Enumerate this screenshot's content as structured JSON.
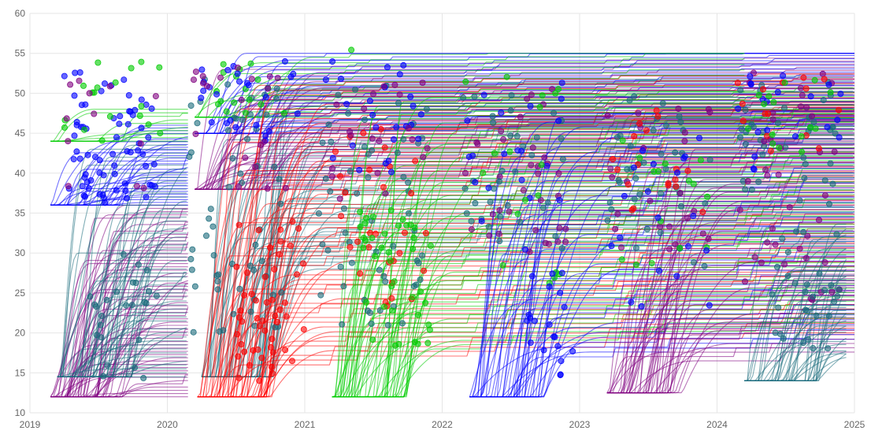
{
  "chart_data": {
    "type": "line",
    "title": "",
    "xlabel": "",
    "ylabel": "",
    "xlim": [
      2019,
      2025
    ],
    "ylim": [
      10,
      60
    ],
    "grid": true,
    "legend": "none",
    "x_ticks": [
      "2019",
      "2020",
      "2021",
      "2022",
      "2023",
      "2024",
      "2025"
    ],
    "y_ticks": [
      "10",
      "15",
      "20",
      "25",
      "30",
      "35",
      "40",
      "45",
      "50",
      "55",
      "60"
    ],
    "colors": {
      "purple": "#800080",
      "teal": "#1a6b7c",
      "red": "#ff0000",
      "green": "#00cc00",
      "blue": "#0000ff",
      "grid": "#e6e6e6",
      "ticks": "#666666"
    },
    "cohorts": [
      {
        "color": "purple",
        "start": 2019.15,
        "end": 2020.15,
        "base": 12.0,
        "plateau_min": 12.0,
        "plateau_max": 36.0,
        "count": 60
      },
      {
        "color": "blue",
        "start": 2019.15,
        "end": 2020.15,
        "base": 36.0,
        "plateau_min": 36.0,
        "plateau_max": 46.0,
        "count": 30
      },
      {
        "color": "green",
        "start": 2019.15,
        "end": 2020.15,
        "base": 44.0,
        "plateau_min": 44.0,
        "plateau_max": 48.0,
        "count": 10
      },
      {
        "color": "teal",
        "start": 2019.2,
        "end": 2020.15,
        "base": 14.5,
        "plateau_min": 14.5,
        "plateau_max": 44.0,
        "count": 60
      },
      {
        "color": "teal",
        "start": 2020.25,
        "end": 2025.0,
        "base": 14.5,
        "plateau_min": 28.0,
        "plateau_max": 51.0,
        "count": 55
      },
      {
        "color": "purple",
        "start": 2020.2,
        "end": 2025.0,
        "base": 38.0,
        "plateau_min": 38.0,
        "plateau_max": 53.0,
        "count": 40
      },
      {
        "color": "blue",
        "start": 2020.2,
        "end": 2025.0,
        "base": 45.0,
        "plateau_min": 45.0,
        "plateau_max": 55.0,
        "count": 25
      },
      {
        "color": "green",
        "start": 2020.2,
        "end": 2024.2,
        "base": 47.0,
        "plateau_min": 47.0,
        "plateau_max": 54.5,
        "count": 12
      },
      {
        "color": "red",
        "start": 2020.22,
        "end": 2025.0,
        "base": 12.0,
        "plateau_min": 16.0,
        "plateau_max": 51.0,
        "count": 60
      },
      {
        "color": "green",
        "start": 2021.2,
        "end": 2025.0,
        "base": 12.0,
        "plateau_min": 18.0,
        "plateau_max": 49.5,
        "count": 60
      },
      {
        "color": "blue",
        "start": 2022.2,
        "end": 2025.0,
        "base": 12.0,
        "plateau_min": 17.0,
        "plateau_max": 47.0,
        "count": 50
      },
      {
        "color": "purple",
        "start": 2023.2,
        "end": 2025.0,
        "base": 12.5,
        "plateau_min": 16.5,
        "plateau_max": 43.0,
        "count": 50
      },
      {
        "color": "teal",
        "start": 2024.2,
        "end": 2024.95,
        "base": 14.0,
        "plateau_min": 17.0,
        "plateau_max": 34.0,
        "count": 45
      }
    ],
    "marker_groups": [
      {
        "color": "blue",
        "x_min": 2019.25,
        "x_max": 2019.95,
        "y_min": 36,
        "y_max": 53,
        "count": 70
      },
      {
        "color": "green",
        "x_min": 2019.25,
        "x_max": 2019.95,
        "y_min": 44,
        "y_max": 54,
        "count": 18
      },
      {
        "color": "purple",
        "x_min": 2019.25,
        "x_max": 2019.95,
        "y_min": 38,
        "y_max": 52,
        "count": 12
      },
      {
        "color": "teal",
        "x_min": 2019.4,
        "x_max": 2019.95,
        "y_min": 14,
        "y_max": 30,
        "count": 25
      },
      {
        "color": "teal",
        "x_min": 2020.15,
        "x_max": 2020.85,
        "y_min": 20,
        "y_max": 52,
        "count": 60
      },
      {
        "color": "green",
        "x_min": 2020.3,
        "x_max": 2020.85,
        "y_min": 47,
        "y_max": 54,
        "count": 16
      },
      {
        "color": "blue",
        "x_min": 2020.15,
        "x_max": 2020.95,
        "y_min": 44,
        "y_max": 54,
        "count": 25
      },
      {
        "color": "purple",
        "x_min": 2020.15,
        "x_max": 2020.95,
        "y_min": 38,
        "y_max": 54,
        "count": 20
      },
      {
        "color": "red",
        "x_min": 2020.5,
        "x_max": 2021.0,
        "y_min": 14,
        "y_max": 34,
        "count": 50
      },
      {
        "color": "teal",
        "x_min": 2021.1,
        "x_max": 2021.9,
        "y_min": 20,
        "y_max": 52,
        "count": 60
      },
      {
        "color": "red",
        "x_min": 2021.2,
        "x_max": 2021.9,
        "y_min": 22,
        "y_max": 46,
        "count": 30
      },
      {
        "color": "blue",
        "x_min": 2021.15,
        "x_max": 2021.9,
        "y_min": 40,
        "y_max": 54,
        "count": 25
      },
      {
        "color": "purple",
        "x_min": 2021.15,
        "x_max": 2021.9,
        "y_min": 36,
        "y_max": 52,
        "count": 20
      },
      {
        "color": "green",
        "x_min": 2021.4,
        "x_max": 2021.95,
        "y_min": 18,
        "y_max": 36,
        "count": 40
      },
      {
        "color": "green",
        "x_min": 2021.3,
        "x_max": 2021.4,
        "y_min": 55,
        "y_max": 57,
        "count": 1
      },
      {
        "color": "purple",
        "x_min": 2022.15,
        "x_max": 2022.9,
        "y_min": 30,
        "y_max": 52,
        "count": 35
      },
      {
        "color": "teal",
        "x_min": 2022.15,
        "x_max": 2022.9,
        "y_min": 30,
        "y_max": 50,
        "count": 35
      },
      {
        "color": "blue",
        "x_min": 2022.15,
        "x_max": 2022.9,
        "y_min": 30,
        "y_max": 53,
        "count": 20
      },
      {
        "color": "green",
        "x_min": 2022.15,
        "x_max": 2022.9,
        "y_min": 26,
        "y_max": 53,
        "count": 18
      },
      {
        "color": "blue",
        "x_min": 2022.6,
        "x_max": 2022.95,
        "y_min": 14,
        "y_max": 28,
        "count": 20
      },
      {
        "color": "teal",
        "x_min": 2023.2,
        "x_max": 2023.95,
        "y_min": 28,
        "y_max": 50,
        "count": 40
      },
      {
        "color": "purple",
        "x_min": 2023.2,
        "x_max": 2023.95,
        "y_min": 30,
        "y_max": 50,
        "count": 25
      },
      {
        "color": "red",
        "x_min": 2023.2,
        "x_max": 2023.95,
        "y_min": 35,
        "y_max": 48,
        "count": 18
      },
      {
        "color": "green",
        "x_min": 2023.2,
        "x_max": 2023.95,
        "y_min": 28,
        "y_max": 46,
        "count": 15
      },
      {
        "color": "blue",
        "x_min": 2023.2,
        "x_max": 2023.95,
        "y_min": 23,
        "y_max": 46,
        "count": 20
      },
      {
        "color": "teal",
        "x_min": 2024.15,
        "x_max": 2024.9,
        "y_min": 36,
        "y_max": 52,
        "count": 40
      },
      {
        "color": "purple",
        "x_min": 2024.15,
        "x_max": 2024.9,
        "y_min": 24,
        "y_max": 53,
        "count": 40
      },
      {
        "color": "blue",
        "x_min": 2024.15,
        "x_max": 2024.9,
        "y_min": 40,
        "y_max": 53,
        "count": 20
      },
      {
        "color": "red",
        "x_min": 2024.15,
        "x_max": 2024.9,
        "y_min": 42,
        "y_max": 52,
        "count": 15
      },
      {
        "color": "green",
        "x_min": 2024.15,
        "x_max": 2024.9,
        "y_min": 42,
        "y_max": 52,
        "count": 15
      },
      {
        "color": "teal",
        "x_min": 2024.4,
        "x_max": 2024.9,
        "y_min": 18,
        "y_max": 33,
        "count": 30
      }
    ]
  }
}
